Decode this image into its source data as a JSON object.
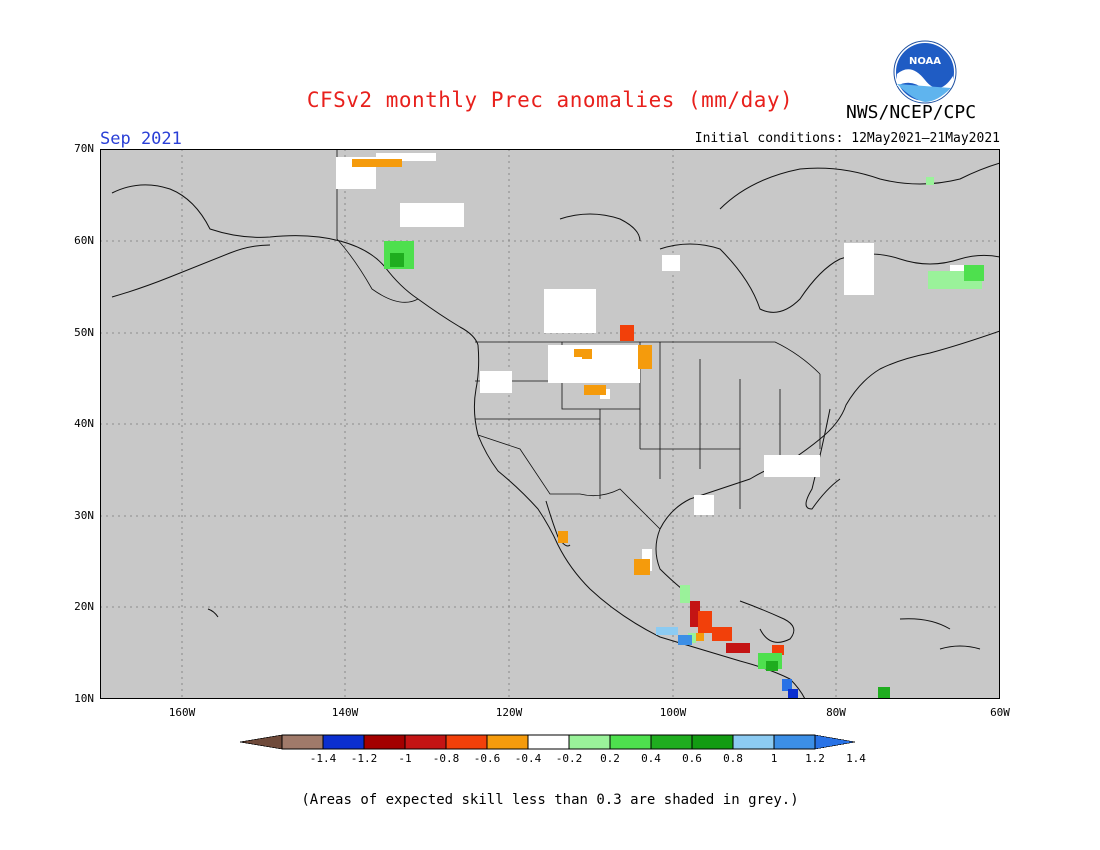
{
  "title": "CFSv2 monthly Prec anomalies (mm/day)",
  "agency": "NWS/NCEP/CPC",
  "logo_text": "NOAA",
  "month": "Sep 2021",
  "initial_conditions": "Initial conditions: 12May2021–21May2021",
  "lat_labels": [
    "70N",
    "60N",
    "50N",
    "40N",
    "30N",
    "20N",
    "10N"
  ],
  "lon_labels": [
    "160W",
    "140W",
    "120W",
    "100W",
    "80W",
    "60W"
  ],
  "colorbar": {
    "labels": [
      "-1.4",
      "-1.2",
      "-1",
      "-0.8",
      "-0.6",
      "-0.4",
      "-0.2",
      "0.2",
      "0.4",
      "0.6",
      "0.8",
      "1",
      "1.2",
      "1.4"
    ],
    "colors": [
      "#6f4a3a",
      "#a07a6a",
      "#0b2fd0",
      "#a30000",
      "#c41414",
      "#f2400a",
      "#f59b0c",
      "#ffffff",
      "#9af29a",
      "#4ee04e",
      "#1fad1f",
      "#129b12",
      "#8ccbf2",
      "#3c8fe6",
      "#2872e6"
    ]
  },
  "note": "(Areas of expected skill less than 0.3 are shaded in grey.)",
  "colors": {
    "map_bg": "#c8c8c8",
    "title": "#e8201c",
    "month": "#2a3fd6"
  }
}
